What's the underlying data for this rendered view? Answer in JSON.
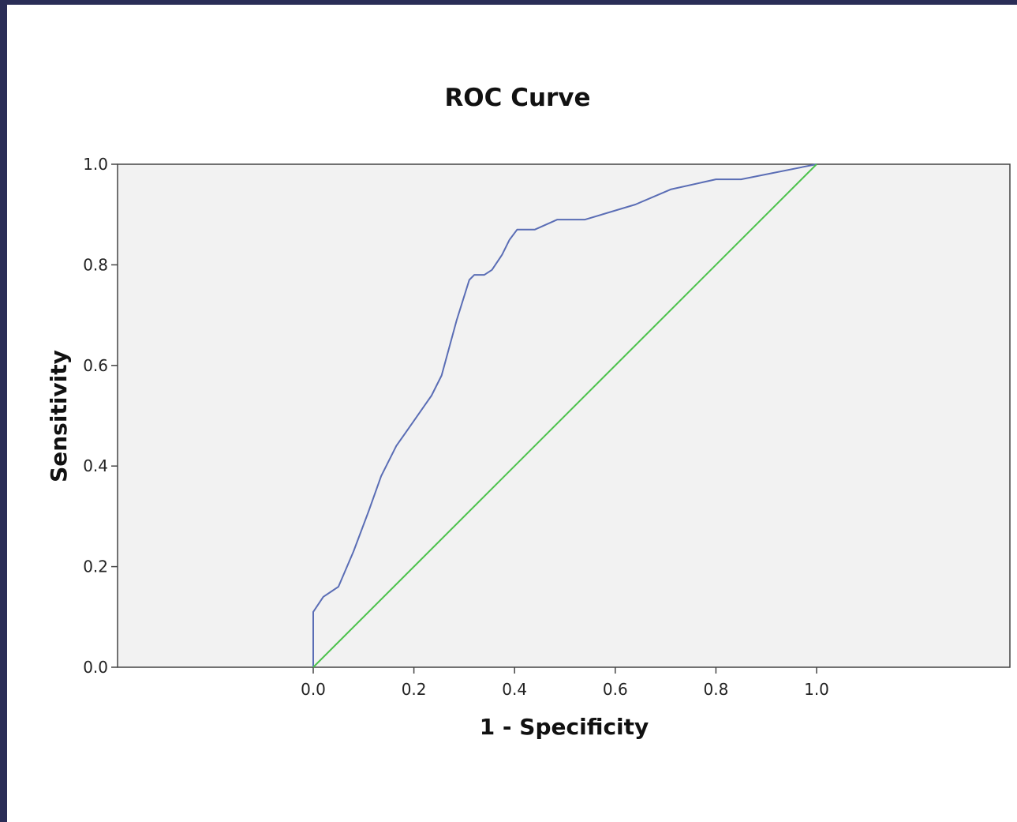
{
  "chart_data": {
    "type": "line",
    "title": "ROC Curve",
    "xlabel": "1 - Specificity",
    "ylabel": "Sensitivity",
    "xlim": [
      0,
      1
    ],
    "ylim": [
      0,
      1
    ],
    "x_ticks": [
      "0.0",
      "0.2",
      "0.4",
      "0.6",
      "0.8",
      "1.0"
    ],
    "y_ticks": [
      "0.0",
      "0.2",
      "0.4",
      "0.6",
      "0.8",
      "1.0"
    ],
    "grid": false,
    "background_color": "#f2f2f2",
    "series": [
      {
        "color": "#5a6db5",
        "x": [
          0.0,
          0.0,
          0.02,
          0.035,
          0.05,
          0.08,
          0.11,
          0.135,
          0.165,
          0.2,
          0.235,
          0.255,
          0.285,
          0.31,
          0.32,
          0.335,
          0.34,
          0.355,
          0.375,
          0.39,
          0.405,
          0.42,
          0.44,
          0.485,
          0.54,
          0.64,
          0.71,
          0.8,
          0.85,
          1.0
        ],
        "y": [
          0.0,
          0.11,
          0.14,
          0.15,
          0.16,
          0.23,
          0.31,
          0.38,
          0.44,
          0.49,
          0.54,
          0.58,
          0.69,
          0.77,
          0.78,
          0.78,
          0.78,
          0.79,
          0.82,
          0.85,
          0.87,
          0.87,
          0.87,
          0.89,
          0.89,
          0.92,
          0.95,
          0.97,
          0.97,
          1.0
        ]
      },
      {
        "color": "#4cc24c",
        "x": [
          0.0,
          1.0
        ],
        "y": [
          0.0,
          1.0
        ]
      }
    ]
  }
}
